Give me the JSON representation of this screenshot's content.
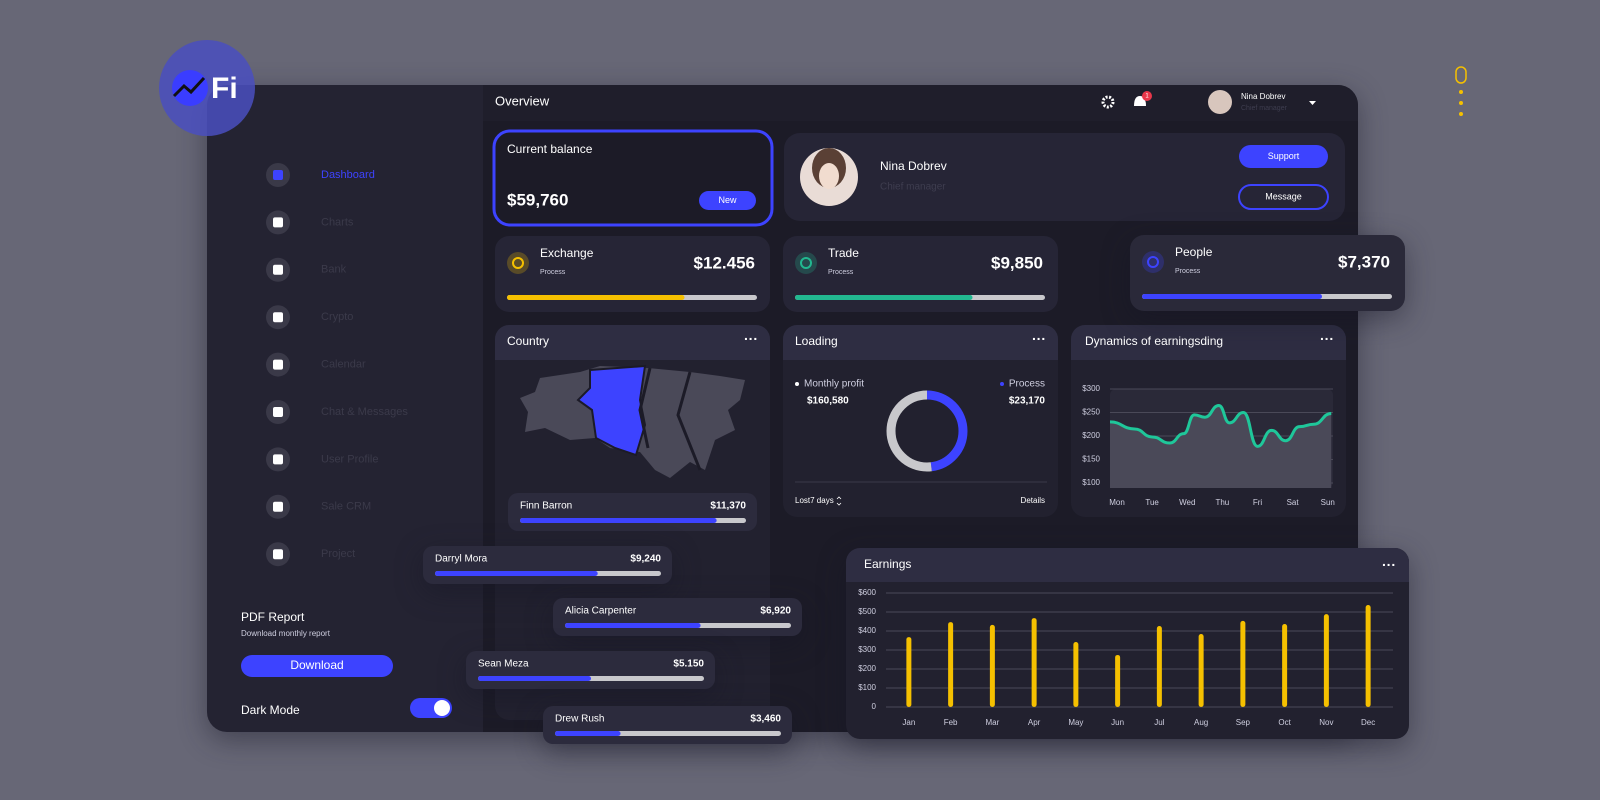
{
  "logo": "Fi",
  "header": {
    "title": "Overview",
    "badge": "1",
    "user_name": "Nina Dobrev",
    "user_role": "Chief manager"
  },
  "sidebar": {
    "items": [
      "Dashboard",
      "Charts",
      "Bank",
      "Crypto",
      "Calendar",
      "Chat & Messages",
      "User Profile",
      "Sale CRM",
      "Project"
    ],
    "report_title": "PDF Report",
    "report_text": "Download monthly report",
    "download": "Download",
    "dark_mode": "Dark Mode"
  },
  "balance": {
    "title": "Current balance",
    "amount": "$59,760",
    "button": "New"
  },
  "profile": {
    "name": "Nina Dobrev",
    "role": "Chief manager",
    "support": "Support",
    "message": "Message"
  },
  "stats": [
    {
      "label": "Exchange",
      "sub": "Process",
      "amount": "$12.456",
      "progress": 71,
      "color": "#f5c000"
    },
    {
      "label": "Trade",
      "sub": "Process",
      "amount": "$9,850",
      "progress": 71,
      "color": "#22b890"
    },
    {
      "label": "People",
      "sub": "Process",
      "amount": "$7,370",
      "progress": 72,
      "color": "#3d43ff"
    }
  ],
  "country": {
    "title": "Country",
    "people": [
      {
        "name": "Finn Barron",
        "amount": "$11,370",
        "progress": 87
      },
      {
        "name": "Darryl Mora",
        "amount": "$9,240",
        "progress": 72
      },
      {
        "name": "Alicia Carpenter",
        "amount": "$6,920",
        "progress": 60
      },
      {
        "name": "Sean Meza",
        "amount": "$5.150",
        "progress": 50
      },
      {
        "name": "Drew Rush",
        "amount": "$3,460",
        "progress": 29
      }
    ]
  },
  "loading": {
    "profit_label": "Monthly profit",
    "profit": "$160,580",
    "process_label": "Process",
    "process": "$23,170",
    "period": "Lost7 days",
    "details": "Details"
  },
  "chart_data": [
    {
      "type": "pie",
      "title": "Loading",
      "values": [
        48,
        52
      ],
      "colors": [
        "#3d43ff",
        "#c8c8cc"
      ]
    },
    {
      "type": "line",
      "title": "Dynamics of earningsding",
      "x": [
        -0.2,
        0.5,
        1,
        1.5,
        1.9,
        2.2,
        2.5,
        2.9,
        3.2,
        3.6,
        4,
        4.4,
        4.8,
        5.2,
        5.6,
        6.1
      ],
      "values": [
        230,
        215,
        198,
        185,
        205,
        245,
        240,
        265,
        228,
        250,
        178,
        212,
        190,
        220,
        225,
        248
      ],
      "color": "#1fc79a",
      "xlim": [
        -0.2,
        6.15
      ],
      "xticks": [
        {
          "value": 0,
          "label": "Mon"
        },
        {
          "value": 1,
          "label": "Tue"
        },
        {
          "value": 2,
          "label": "Wed"
        },
        {
          "value": 3,
          "label": "Thu"
        },
        {
          "value": 4,
          "label": "Fri"
        },
        {
          "value": 5,
          "label": "Sat"
        },
        {
          "value": 6,
          "label": "Sun"
        }
      ],
      "ylim": [
        100,
        300
      ],
      "yticks": [
        {
          "value": 100,
          "label": "$100"
        },
        {
          "value": 150,
          "label": "$150"
        },
        {
          "value": 200,
          "label": "$200"
        },
        {
          "value": 250,
          "label": "$250"
        },
        {
          "value": 300,
          "label": "$300"
        }
      ],
      "grid": true
    },
    {
      "type": "bar",
      "title": "Earnings",
      "categories": [
        "Jan",
        "Feb",
        "Mar",
        "Apr",
        "May",
        "Jun",
        "Jul",
        "Aug",
        "Sep",
        "Oct",
        "Nov",
        "Dec"
      ],
      "values": [
        368,
        447,
        432,
        468,
        342,
        274,
        426,
        384,
        453,
        437,
        489,
        537
      ],
      "color": "#f5c000",
      "ylim": [
        0,
        600
      ],
      "yticks": [
        0,
        {
          "value": 100,
          "label": "$100"
        },
        {
          "value": 200,
          "label": "$200"
        },
        {
          "value": 300,
          "label": "$300"
        },
        {
          "value": 400,
          "label": "$400"
        },
        {
          "value": 500,
          "label": "$500"
        },
        {
          "value": 600,
          "label": "$600"
        }
      ],
      "grid": true
    }
  ]
}
